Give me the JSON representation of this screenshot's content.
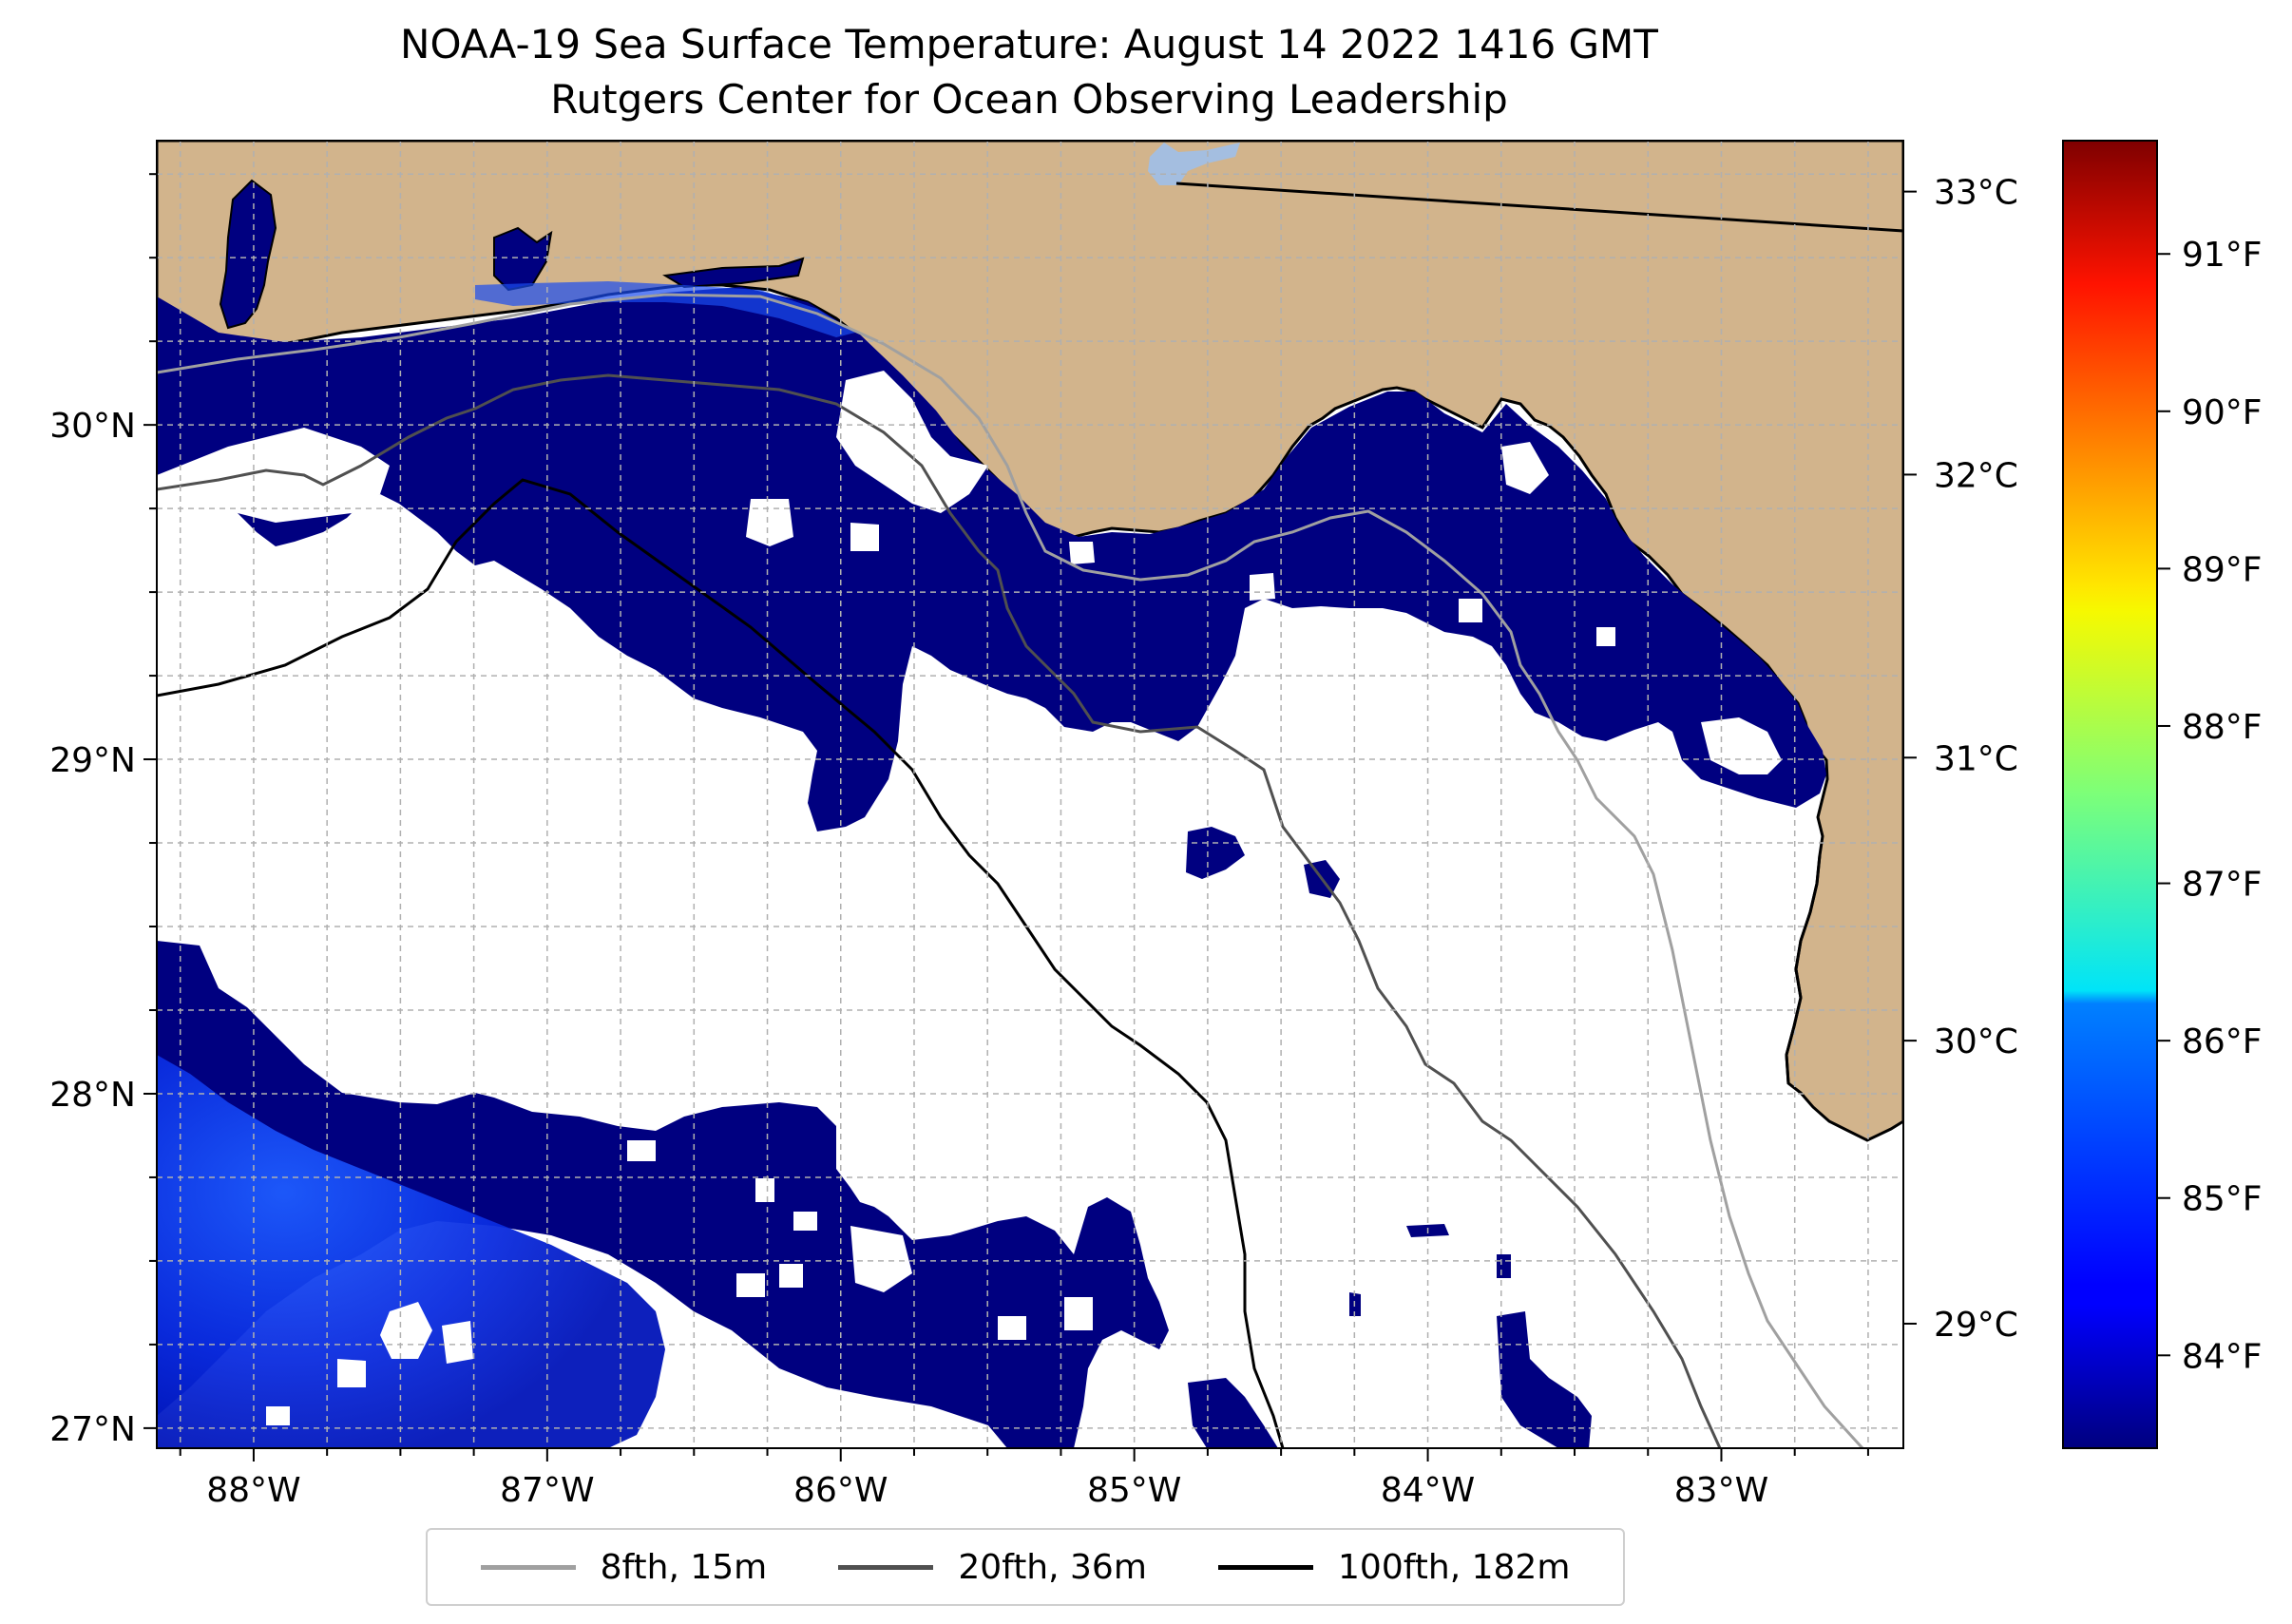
{
  "title": {
    "line1": "NOAA-19 Sea Surface Temperature: August 14 2022 1416 GMT",
    "line2": "Rutgers Center for Ocean Observing Leadership"
  },
  "map": {
    "extent": {
      "lon": [
        -88.33,
        -82.38
      ],
      "lat": [
        26.94,
        30.85
      ]
    },
    "latitude_ticks": [
      {
        "value": 27,
        "label": "27°N"
      },
      {
        "value": 28,
        "label": "28°N"
      },
      {
        "value": 29,
        "label": "29°N"
      },
      {
        "value": 30,
        "label": "30°N"
      }
    ],
    "longitude_ticks": [
      {
        "value": -88,
        "label": "88°W"
      },
      {
        "value": -87,
        "label": "87°W"
      },
      {
        "value": -86,
        "label": "86°W"
      },
      {
        "value": -85,
        "label": "85°W"
      },
      {
        "value": -84,
        "label": "84°W"
      },
      {
        "value": -83,
        "label": "83°W"
      }
    ],
    "gridlines": true,
    "colors": {
      "land": "#D2B48C",
      "no_data": "#ffffff",
      "coast": "#000000",
      "lake": "#A4BEE0"
    }
  },
  "colorbar": {
    "colormap": "jet",
    "celsius_ticks": [
      {
        "value": 29,
        "label": "29°C"
      },
      {
        "value": 30,
        "label": "30°C"
      },
      {
        "value": 31,
        "label": "31°C"
      },
      {
        "value": 32,
        "label": "32°C"
      },
      {
        "value": 33,
        "label": "33°C"
      }
    ],
    "fahrenheit_ticks": [
      {
        "value": 84,
        "label": "84°F"
      },
      {
        "value": 85,
        "label": "85°F"
      },
      {
        "value": 86,
        "label": "86°F"
      },
      {
        "value": 87,
        "label": "87°F"
      },
      {
        "value": 88,
        "label": "88°F"
      },
      {
        "value": 89,
        "label": "89°F"
      },
      {
        "value": 90,
        "label": "90°F"
      },
      {
        "value": 91,
        "label": "91°F"
      }
    ]
  },
  "legend": {
    "placement": "bottom-center",
    "items": [
      {
        "label": "8fth, 15m",
        "color": "#a0a0a0"
      },
      {
        "label": "20fth, 36m",
        "color": "#505050"
      },
      {
        "label": "100fth, 182m",
        "color": "#000000"
      }
    ]
  }
}
